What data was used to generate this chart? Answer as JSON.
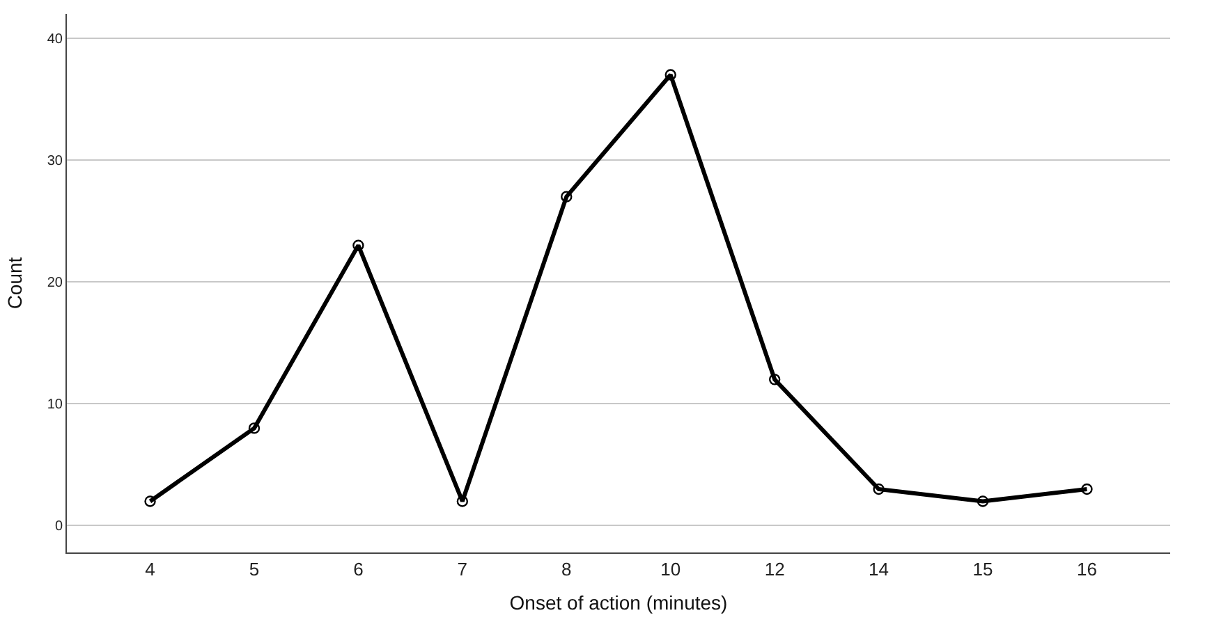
{
  "chart_data": {
    "type": "line",
    "xlabel": "Onset of action (minutes)",
    "ylabel": "Count",
    "categories": [
      "4",
      "5",
      "6",
      "7",
      "8",
      "10",
      "12",
      "14",
      "15",
      "16"
    ],
    "series": [
      {
        "color": "#000000",
        "values": [
          2,
          8,
          23,
          2,
          27,
          37,
          12,
          3,
          2,
          3
        ]
      }
    ],
    "ylim": [
      -2.2,
      42
    ],
    "yticks": [
      0,
      10,
      20,
      30,
      40
    ],
    "grid": "y",
    "marker": "circle",
    "line_style": "solid"
  }
}
